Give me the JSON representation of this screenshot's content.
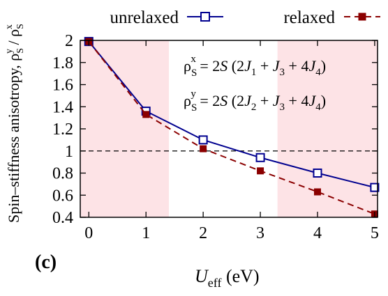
{
  "chart_data": {
    "type": "line",
    "panel_label": "(c)",
    "xlabel": {
      "main": "U",
      "sub": "eff",
      "unit": " (eV)"
    },
    "ylabel": "Spin-stiffness anisotropy, ρS^y / ρS^x",
    "xlim": [
      -0.15,
      5.05
    ],
    "ylim": [
      0.4,
      2.0
    ],
    "x_ticks": [
      "0",
      "1",
      "2",
      "3",
      "4",
      "5"
    ],
    "y_ticks": [
      "0.4",
      "0.6",
      "0.8",
      "1",
      "1.2",
      "1.4",
      "1.6",
      "1.8",
      "2"
    ],
    "reference_line": {
      "y": 1.0,
      "style": "dashed",
      "color": "#000000"
    },
    "shaded_regions": [
      {
        "x": [
          -0.15,
          1.4
        ],
        "color": "#fde3e6"
      },
      {
        "x": [
          3.3,
          5.05
        ],
        "color": "#fde3e6"
      }
    ],
    "series": [
      {
        "name": "unrelaxed",
        "color": "#00008f",
        "line_style": "solid",
        "marker": "open-square",
        "x": [
          0,
          1,
          2,
          3,
          4,
          5
        ],
        "y": [
          1.99,
          1.36,
          1.1,
          0.94,
          0.8,
          0.67
        ]
      },
      {
        "name": "relaxed",
        "color": "#8b0000",
        "line_style": "dashed",
        "marker": "filled-square",
        "x": [
          0,
          1,
          2,
          3,
          4,
          5
        ],
        "y": [
          1.99,
          1.33,
          1.02,
          0.82,
          0.63,
          0.43
        ]
      }
    ],
    "equations": [
      {
        "sup": "x",
        "rhs_pre": "2",
        "S": "S",
        "t1": "(2",
        "J1": "J",
        "s1": "1",
        "plus1": " + ",
        "J3": "J",
        "s3": "3",
        "plus2": " + 4",
        "J4": "J",
        "s4": "4",
        "close": ")"
      },
      {
        "sup": "y",
        "rhs_pre": "2",
        "S": "S",
        "t1": "(2",
        "J1": "J",
        "s1": "2",
        "plus1": " + ",
        "J3": "J",
        "s3": "3",
        "plus2": " + 4",
        "J4": "J",
        "s4": "4",
        "close": ")"
      }
    ],
    "equation_rho": "ρ",
    "equation_sub": "S",
    "equation_eq": " = ",
    "legend_position": "top"
  }
}
